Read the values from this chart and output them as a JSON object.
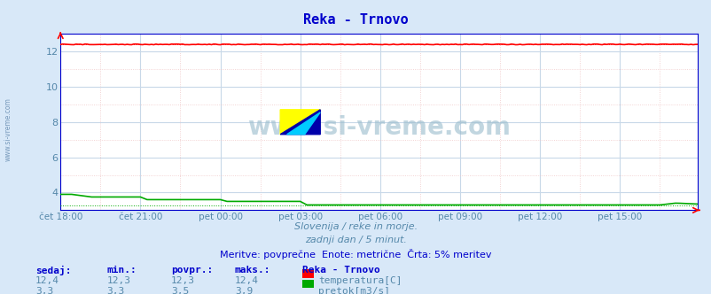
{
  "title": "Reka - Trnovo",
  "bg_color": "#d8e8f8",
  "plot_bg_color": "#ffffff",
  "grid_color_major": "#c8d8e8",
  "grid_color_minor": "#f0c8c8",
  "x_tick_labels": [
    "čet 18:00",
    "čet 21:00",
    "pet 00:00",
    "pet 03:00",
    "pet 06:00",
    "pet 09:00",
    "pet 12:00",
    "pet 15:00"
  ],
  "x_tick_positions": [
    0,
    36,
    72,
    108,
    144,
    180,
    216,
    252
  ],
  "n_points": 288,
  "ylim": [
    3.0,
    13.0
  ],
  "y_ticks": [
    4,
    6,
    8,
    10,
    12
  ],
  "temp_value": "12,4",
  "temp_min": "12,3",
  "temp_max": "12,4",
  "temp_avg": "12,3",
  "flow_value": "3,3",
  "flow_min": "3,3",
  "flow_max": "3,9",
  "flow_avg": "3,5",
  "temp_color": "#ff0000",
  "flow_color": "#00aa00",
  "watermark": "www.si-vreme.com",
  "subtitle1": "Slovenija / reke in morje.",
  "subtitle2": "zadnji dan / 5 minut.",
  "subtitle3": "Meritve: povprečne  Enote: metrične  Črta: 5% meritev",
  "label_color": "#0000cc",
  "text_color": "#5588aa",
  "legend_title": "Reka - Trnovo",
  "legend_temp": "temperatura[C]",
  "legend_flow": "pretok[m3/s]",
  "sidebar_text": "www.si-vreme.com",
  "spine_color": "#0000cc",
  "axis_arrow_color": "#ff0000"
}
